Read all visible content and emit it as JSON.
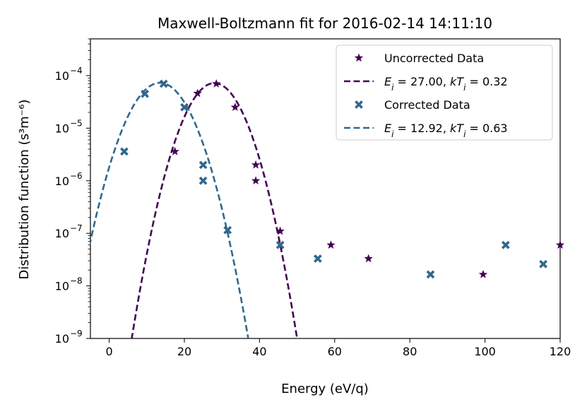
{
  "chart_data": {
    "type": "scatter",
    "title": "Maxwell-Boltzmann fit for 2016-02-14 14:11:10",
    "xlabel": "Energy (eV/q)",
    "ylabel": "Distribution function (s³m⁻⁶)",
    "yscale": "log",
    "xlim": [
      -5,
      120
    ],
    "ylim": [
      1e-09,
      0.0005
    ],
    "xticks": [
      0,
      20,
      40,
      60,
      80,
      100,
      120
    ],
    "xtick_labels": [
      "0",
      "20",
      "40",
      "60",
      "80",
      "100",
      "120"
    ],
    "yticks": [
      1e-09,
      1e-08,
      1e-07,
      1e-06,
      1e-05,
      0.0001
    ],
    "ytick_labels": [
      {
        "base": "10",
        "exp": "−9"
      },
      {
        "base": "10",
        "exp": "−8"
      },
      {
        "base": "10",
        "exp": "−7"
      },
      {
        "base": "10",
        "exp": "−6"
      },
      {
        "base": "10",
        "exp": "−5"
      },
      {
        "base": "10",
        "exp": "−4"
      }
    ],
    "legend_position": "top-right",
    "series": [
      {
        "name": "Uncorrected Data",
        "kind": "scatter",
        "marker": "star",
        "color": "#440154",
        "points": [
          [
            17.5,
            3.6e-06
          ],
          [
            23.5,
            4.6e-05
          ],
          [
            28.5,
            7e-05
          ],
          [
            33.5,
            2.5e-05
          ],
          [
            39,
            2e-06
          ],
          [
            39,
            1e-06
          ],
          [
            45.5,
            1.1e-07
          ],
          [
            59,
            6e-08
          ],
          [
            69,
            3.3e-08
          ],
          [
            99.5,
            1.65e-08
          ],
          [
            120,
            6e-08
          ]
        ]
      },
      {
        "name": "E_i = 27.00, kT_i = 0.32",
        "kind": "fit",
        "color": "#440154",
        "fit": {
          "peak_E": 28.0,
          "peak_f": 7.2e-05,
          "half_span": 22.0
        }
      },
      {
        "name": "Corrected Data",
        "kind": "scatter",
        "marker": "x",
        "color": "#31688e",
        "points": [
          [
            4,
            3.6e-06
          ],
          [
            9.5,
            4.5e-05
          ],
          [
            14.5,
            7e-05
          ],
          [
            20,
            2.5e-05
          ],
          [
            25,
            2e-06
          ],
          [
            25,
            1e-06
          ],
          [
            31.5,
            1.15e-07
          ],
          [
            45.5,
            6e-08
          ],
          [
            55.5,
            3.3e-08
          ],
          [
            85.5,
            1.65e-08
          ],
          [
            105.5,
            6e-08
          ],
          [
            115.5,
            2.6e-08
          ]
        ]
      },
      {
        "name": "E_i = 12.92, kT_i = 0.63",
        "kind": "fit",
        "color": "#31688e",
        "fit": {
          "peak_E": 13.5,
          "peak_f": 7.3e-05,
          "half_span": 23.5
        }
      }
    ],
    "legend": [
      {
        "type": "star",
        "color": "#440154",
        "label": "Uncorrected Data"
      },
      {
        "type": "dash",
        "color": "#440154",
        "prefix": "E",
        "sub1": "i",
        "mid": " =  27.00, ",
        "k": "kT",
        "sub2": "i",
        "suffix": " = 0.32"
      },
      {
        "type": "x",
        "color": "#31688e",
        "label": "Corrected Data"
      },
      {
        "type": "dash",
        "color": "#31688e",
        "prefix": "E",
        "sub1": "i",
        "mid": " =  12.92, ",
        "k": "kT",
        "sub2": "i",
        "suffix": " = 0.63"
      }
    ]
  }
}
